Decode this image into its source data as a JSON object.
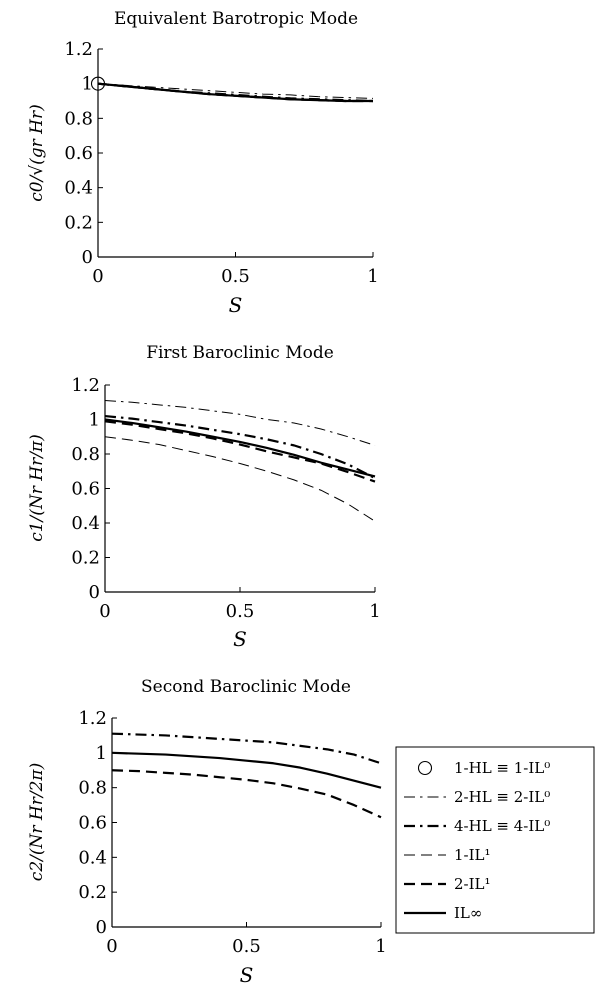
{
  "chart_data": [
    {
      "type": "line",
      "title": "Equivalent Barotropic Mode",
      "xlabel": "S",
      "ylabel": "c0/√(gr Hr)",
      "xlim": [
        0,
        1
      ],
      "ylim": [
        0,
        1.2
      ],
      "xticks": [
        "0",
        "0.5",
        "1"
      ],
      "yticks": [
        "0",
        "0.2",
        "0.4",
        "0.6",
        "0.8",
        "1",
        "1.2"
      ],
      "grid": false,
      "x": [
        0,
        0.1,
        0.2,
        0.3,
        0.4,
        0.5,
        0.6,
        0.7,
        0.8,
        0.9,
        1.0
      ],
      "series": [
        {
          "name": "1-HL ≡ 1-IL⁰",
          "style": "circle",
          "points": [
            [
              0,
              1.0
            ]
          ]
        },
        {
          "name": "2-HL ≡ 2-IL⁰",
          "style": "thin-dashdot",
          "values": [
            1.0,
            0.99,
            0.98,
            0.97,
            0.96,
            0.95,
            0.94,
            0.935,
            0.925,
            0.92,
            0.915
          ]
        },
        {
          "name": "4-HL ≡ 4-IL⁰",
          "style": "thick-dashdot",
          "values": [
            1.0,
            0.985,
            0.97,
            0.955,
            0.945,
            0.935,
            0.925,
            0.915,
            0.91,
            0.905,
            0.9
          ]
        },
        {
          "name": "1-IL¹",
          "style": "thin-dash",
          "values": [
            1.0,
            0.985,
            0.97,
            0.955,
            0.94,
            0.93,
            0.92,
            0.91,
            0.905,
            0.9,
            0.9
          ]
        },
        {
          "name": "2-IL¹",
          "style": "thick-dash",
          "values": [
            1.0,
            0.985,
            0.97,
            0.955,
            0.94,
            0.93,
            0.92,
            0.91,
            0.905,
            0.9,
            0.9
          ]
        },
        {
          "name": "IL∞",
          "style": "solid",
          "values": [
            1.0,
            0.985,
            0.97,
            0.955,
            0.94,
            0.93,
            0.92,
            0.91,
            0.905,
            0.9,
            0.9
          ]
        }
      ]
    },
    {
      "type": "line",
      "title": "First Baroclinic Mode",
      "xlabel": "S",
      "ylabel": "c1/(Nr Hr/π)",
      "xlim": [
        0,
        1
      ],
      "ylim": [
        0,
        1.2
      ],
      "xticks": [
        "0",
        "0.5",
        "1"
      ],
      "yticks": [
        "0",
        "0.2",
        "0.4",
        "0.6",
        "0.8",
        "1",
        "1.2"
      ],
      "grid": false,
      "x": [
        0,
        0.1,
        0.2,
        0.3,
        0.4,
        0.5,
        0.6,
        0.7,
        0.8,
        0.9,
        1.0
      ],
      "series": [
        {
          "name": "2-HL ≡ 2-IL⁰",
          "style": "thin-dashdot",
          "values": [
            1.11,
            1.1,
            1.085,
            1.07,
            1.05,
            1.03,
            1.0,
            0.98,
            0.945,
            0.9,
            0.85
          ]
        },
        {
          "name": "4-HL ≡ 4-IL⁰",
          "style": "thick-dashdot",
          "values": [
            1.02,
            1.005,
            0.985,
            0.965,
            0.94,
            0.915,
            0.885,
            0.85,
            0.8,
            0.74,
            0.66
          ]
        },
        {
          "name": "1-IL¹",
          "style": "thin-dash",
          "values": [
            0.9,
            0.88,
            0.855,
            0.82,
            0.785,
            0.745,
            0.7,
            0.65,
            0.59,
            0.51,
            0.41
          ]
        },
        {
          "name": "2-IL¹",
          "style": "thick-dash",
          "values": [
            0.99,
            0.97,
            0.945,
            0.92,
            0.89,
            0.855,
            0.815,
            0.78,
            0.745,
            0.695,
            0.64
          ]
        },
        {
          "name": "IL∞",
          "style": "solid",
          "values": [
            1.0,
            0.98,
            0.955,
            0.93,
            0.9,
            0.87,
            0.835,
            0.795,
            0.75,
            0.71,
            0.67
          ]
        }
      ]
    },
    {
      "type": "line",
      "title": "Second Baroclinic Mode",
      "xlabel": "S",
      "ylabel": "c2/(Nr Hr/2π)",
      "xlim": [
        0,
        1
      ],
      "ylim": [
        0,
        1.2
      ],
      "xticks": [
        "0",
        "0.5",
        "1"
      ],
      "yticks": [
        "0",
        "0.2",
        "0.4",
        "0.6",
        "0.8",
        "1",
        "1.2"
      ],
      "grid": false,
      "legend_position": "right",
      "x": [
        0,
        0.1,
        0.2,
        0.3,
        0.4,
        0.5,
        0.6,
        0.7,
        0.8,
        0.9,
        1.0
      ],
      "series": [
        {
          "name": "4-HL ≡ 4-IL⁰",
          "style": "thick-dashdot",
          "values": [
            1.11,
            1.105,
            1.1,
            1.09,
            1.08,
            1.07,
            1.06,
            1.04,
            1.02,
            0.99,
            0.94
          ]
        },
        {
          "name": "2-IL¹",
          "style": "thick-dash",
          "values": [
            0.9,
            0.895,
            0.885,
            0.875,
            0.86,
            0.845,
            0.825,
            0.795,
            0.76,
            0.7,
            0.63
          ]
        },
        {
          "name": "IL∞",
          "style": "solid",
          "values": [
            1.0,
            0.995,
            0.99,
            0.98,
            0.97,
            0.955,
            0.94,
            0.915,
            0.88,
            0.84,
            0.8
          ]
        }
      ]
    }
  ],
  "legend": {
    "entries": [
      {
        "label": "1-HL ≡ 1-IL⁰",
        "style": "circle"
      },
      {
        "label": "2-HL ≡ 2-IL⁰",
        "style": "thin-dashdot"
      },
      {
        "label": "4-HL ≡ 4-IL⁰",
        "style": "thick-dashdot"
      },
      {
        "label": "1-IL¹",
        "style": "thin-dash"
      },
      {
        "label": "2-IL¹",
        "style": "thick-dash"
      },
      {
        "label": "IL∞",
        "style": "solid"
      }
    ]
  }
}
